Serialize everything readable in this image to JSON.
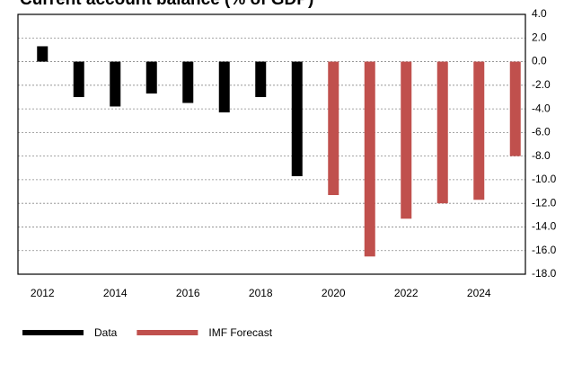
{
  "chart_data": {
    "type": "bar",
    "title": "Current account balance (% of GDP)",
    "categories": [
      "2012",
      null,
      "2014",
      null,
      "2016",
      null,
      "2018",
      null,
      "2020",
      null,
      "2022",
      null,
      "2024",
      null
    ],
    "series": [
      {
        "name": "Data",
        "color": "#000000",
        "values": [
          1.3,
          -3.0,
          -3.8,
          -2.7,
          -3.5,
          -4.3,
          -3.0,
          -9.7,
          null,
          null,
          null,
          null,
          null,
          null
        ]
      },
      {
        "name": "IMF Forecast",
        "color": "#c0504d",
        "values": [
          null,
          null,
          null,
          null,
          null,
          null,
          null,
          null,
          -11.3,
          -16.5,
          -13.3,
          -12.0,
          -11.7,
          -8.0
        ]
      }
    ],
    "ylim": [
      -18,
      4
    ],
    "yticks": [
      {
        "value": 4,
        "label": "4.0"
      },
      {
        "value": 2,
        "label": "2.0"
      },
      {
        "value": 0,
        "label": "0.0"
      },
      {
        "value": -2,
        "label": "-2.0"
      },
      {
        "value": -4,
        "label": "-4.0"
      },
      {
        "value": -6,
        "label": "-6.0"
      },
      {
        "value": -8,
        "label": "-8.0"
      },
      {
        "value": -10,
        "label": "-10.0"
      },
      {
        "value": -12,
        "label": "-12.0"
      },
      {
        "value": -14,
        "label": "-14.0"
      },
      {
        "value": -16,
        "label": "-16.0"
      },
      {
        "value": -18,
        "label": "-18.0"
      }
    ],
    "grid": true,
    "legend": "bottom"
  }
}
